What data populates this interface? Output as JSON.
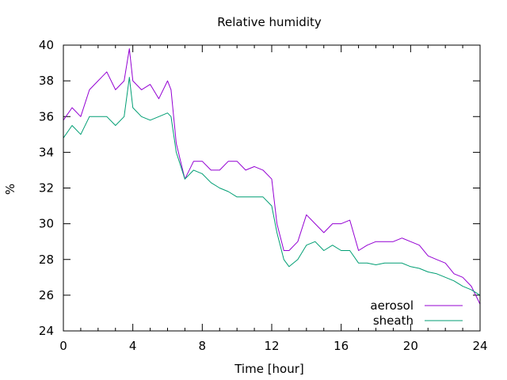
{
  "chart_data": {
    "type": "line",
    "title": "Relative humidity",
    "xlabel": "Time [hour]",
    "ylabel": "%",
    "xlim": [
      0,
      24
    ],
    "ylim": [
      24,
      40
    ],
    "xticks": [
      0,
      4,
      8,
      12,
      16,
      20,
      24
    ],
    "yticks": [
      24,
      26,
      28,
      30,
      32,
      34,
      36,
      38,
      40
    ],
    "grid": false,
    "legend_position": "bottom-right",
    "series": [
      {
        "name": "aerosol",
        "color": "#9400d3",
        "x": [
          0,
          0.5,
          1,
          1.5,
          2,
          2.5,
          3,
          3.5,
          3.8,
          4,
          4.5,
          5,
          5.5,
          6,
          6.2,
          6.5,
          7,
          7.5,
          8,
          8.5,
          9,
          9.5,
          10,
          10.5,
          11,
          11.5,
          12,
          12.3,
          12.7,
          13,
          13.5,
          14,
          14.5,
          15,
          15.5,
          16,
          16.5,
          17,
          17.5,
          18,
          18.5,
          19,
          19.5,
          20,
          20.5,
          21,
          21.5,
          22,
          22.5,
          23,
          23.5,
          24
        ],
        "y": [
          35.8,
          36.5,
          36.0,
          37.5,
          38.0,
          38.5,
          37.5,
          38.0,
          39.8,
          38.0,
          37.5,
          37.8,
          37.0,
          38.0,
          37.5,
          34.5,
          32.5,
          33.5,
          33.5,
          33.0,
          33.0,
          33.5,
          33.5,
          33.0,
          33.2,
          33.0,
          32.5,
          30.0,
          28.5,
          28.5,
          29.0,
          30.5,
          30.0,
          29.5,
          30.0,
          30.0,
          30.2,
          28.5,
          28.8,
          29.0,
          29.0,
          29.0,
          29.2,
          29.0,
          28.8,
          28.2,
          28.0,
          27.8,
          27.2,
          27.0,
          26.5,
          25.5
        ]
      },
      {
        "name": "sheath",
        "color": "#009e73",
        "x": [
          0,
          0.5,
          1,
          1.5,
          2,
          2.5,
          3,
          3.5,
          3.8,
          4,
          4.5,
          5,
          5.5,
          6,
          6.2,
          6.5,
          7,
          7.5,
          8,
          8.5,
          9,
          9.5,
          10,
          10.5,
          11,
          11.5,
          12,
          12.3,
          12.7,
          13,
          13.5,
          14,
          14.5,
          15,
          15.5,
          16,
          16.5,
          17,
          17.5,
          18,
          18.5,
          19,
          19.5,
          20,
          20.5,
          21,
          21.5,
          22,
          22.5,
          23,
          23.5,
          24
        ],
        "y": [
          34.8,
          35.5,
          35.0,
          36.0,
          36.0,
          36.0,
          35.5,
          36.0,
          38.2,
          36.5,
          36.0,
          35.8,
          36.0,
          36.2,
          36.0,
          34.0,
          32.5,
          33.0,
          32.8,
          32.3,
          32.0,
          31.8,
          31.5,
          31.5,
          31.5,
          31.5,
          31.0,
          29.5,
          28.0,
          27.6,
          28.0,
          28.8,
          29.0,
          28.5,
          28.8,
          28.5,
          28.5,
          27.8,
          27.8,
          27.7,
          27.8,
          27.8,
          27.8,
          27.6,
          27.5,
          27.3,
          27.2,
          27.0,
          26.8,
          26.5,
          26.3,
          26.0
        ]
      }
    ]
  }
}
